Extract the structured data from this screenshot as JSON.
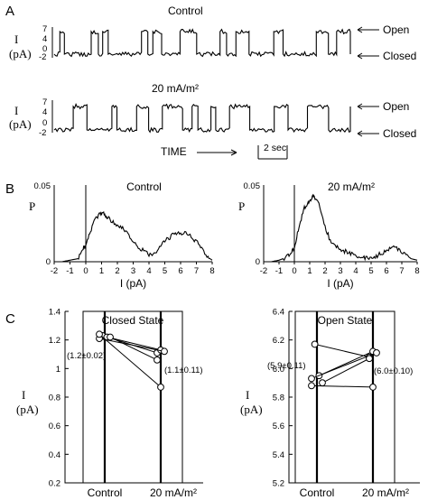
{
  "panels": {
    "A": {
      "letter": "A",
      "traces": [
        {
          "title": "Control",
          "ylabel_top": "I",
          "ylabel_bottom": "(pA)",
          "ticks": [
            "7",
            "4",
            "0",
            "-2"
          ],
          "open_label": "Open",
          "closed_label": "Closed"
        },
        {
          "title": "20 mA/m²",
          "ylabel_top": "I",
          "ylabel_bottom": "(pA)",
          "ticks": [
            "7",
            "4",
            "0",
            "-2"
          ],
          "open_label": "Open",
          "closed_label": "Closed"
        }
      ],
      "time_label": "TIME",
      "scale_label": "2 sec"
    },
    "B": {
      "letter": "B"
    },
    "C": {
      "letter": "C"
    }
  },
  "chart_data": [
    {
      "type": "area",
      "title": "Control",
      "xlabel": "I (pA)",
      "ylabel": "P",
      "xlim": [
        -2,
        8
      ],
      "ylim": [
        0,
        0.05
      ],
      "x_ticks": [
        "-2",
        "-1",
        "0",
        "1",
        "2",
        "3",
        "4",
        "5",
        "6",
        "7",
        "8"
      ],
      "y_ticks": [
        "0.05",
        "0"
      ],
      "x": [
        -2,
        -1.5,
        -1,
        -0.5,
        -0.2,
        0,
        0.3,
        0.6,
        0.9,
        1.1,
        1.3,
        1.6,
        2,
        2.4,
        2.8,
        3.2,
        3.6,
        4,
        4.4,
        4.8,
        5.2,
        5.6,
        6,
        6.4,
        6.8,
        7.2,
        7.6,
        8
      ],
      "values": [
        0,
        0,
        0.001,
        0.002,
        0.008,
        0.011,
        0.02,
        0.028,
        0.031,
        0.033,
        0.029,
        0.027,
        0.024,
        0.021,
        0.016,
        0.01,
        0.008,
        0.005,
        0.006,
        0.011,
        0.015,
        0.018,
        0.019,
        0.018,
        0.015,
        0.011,
        0.004,
        0.001
      ]
    },
    {
      "type": "area",
      "title": "20 mA/m²",
      "xlabel": "I (pA)",
      "ylabel": "P",
      "xlim": [
        -2,
        8
      ],
      "ylim": [
        0,
        0.05
      ],
      "x_ticks": [
        "-2",
        "-1",
        "0",
        "1",
        "2",
        "3",
        "4",
        "5",
        "6",
        "7",
        "8"
      ],
      "y_ticks": [
        "0.05",
        "0"
      ],
      "x": [
        -2,
        -1.5,
        -1,
        -0.5,
        -0.2,
        0,
        0.3,
        0.6,
        0.9,
        1.1,
        1.3,
        1.6,
        2,
        2.4,
        2.8,
        3.2,
        3.6,
        4,
        4.4,
        4.8,
        5.2,
        5.6,
        6,
        6.4,
        6.8,
        7.2,
        7.6,
        8
      ],
      "values": [
        0,
        0,
        0.001,
        0.003,
        0.006,
        0.01,
        0.022,
        0.034,
        0.039,
        0.041,
        0.043,
        0.037,
        0.023,
        0.012,
        0.009,
        0.007,
        0.006,
        0.004,
        0.003,
        0.002,
        0.003,
        0.005,
        0.007,
        0.009,
        0.008,
        0.005,
        0.002,
        0.001
      ]
    },
    {
      "type": "line",
      "title": "Closed State",
      "ylabel": "I (pA)",
      "categories": [
        "Control",
        "20 mA/m²"
      ],
      "ylim": [
        0.2,
        1.4
      ],
      "y_ticks": [
        "1.4",
        "1.2",
        "1",
        "0.8",
        "0.6",
        "0.4",
        "0.2"
      ],
      "series": [
        {
          "values": [
            1.23,
            1.11
          ]
        },
        {
          "values": [
            1.22,
            1.13
          ]
        },
        {
          "values": [
            1.21,
            1.12
          ]
        },
        {
          "values": [
            1.22,
            1.06
          ]
        },
        {
          "values": [
            1.24,
            0.87
          ]
        }
      ],
      "annotations": [
        "(1.2±0.02)",
        "(1.1±0.11)"
      ]
    },
    {
      "type": "line",
      "title": "Open State",
      "ylabel": "I (pA)",
      "categories": [
        "Control",
        "20 mA/m²"
      ],
      "ylim": [
        5.2,
        6.4
      ],
      "y_ticks": [
        "6.4",
        "6.2",
        "6.0",
        "5.8",
        "5.6",
        "5.4",
        "5.2"
      ],
      "series": [
        {
          "values": [
            6.17,
            6.08
          ]
        },
        {
          "values": [
            5.95,
            6.12
          ]
        },
        {
          "values": [
            5.93,
            6.11
          ]
        },
        {
          "values": [
            5.9,
            6.07
          ]
        },
        {
          "values": [
            5.88,
            5.87
          ]
        }
      ],
      "annotations": [
        "(5.9±0.11)",
        "(6.0±0.10)"
      ]
    }
  ]
}
